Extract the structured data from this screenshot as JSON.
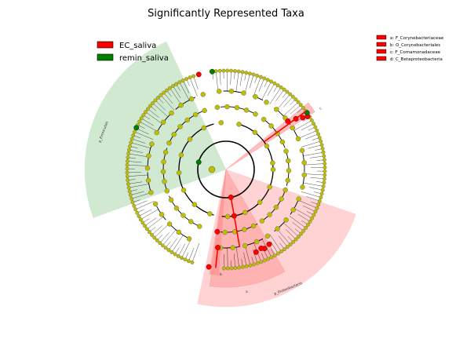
{
  "title": "Significantly Represented Taxa",
  "groups": [
    {
      "name": "EC_saliva",
      "color": "#ff0000"
    },
    {
      "name": "remin_saliva",
      "color": "#008000"
    }
  ],
  "taxa_legend": [
    "a: F_Corynebacteriaceae",
    "b: O_Corynebacteriales",
    "c: F_Comamonadaceae",
    "d: C_Betaproteobacteria"
  ],
  "clade_labels": {
    "firmicutes": "p_Firmicutes",
    "proteobacteria": "p_Proteobacteria",
    "a": "a",
    "b": "b",
    "c": "c",
    "d": "d"
  },
  "colors": {
    "node_default": "#bfbf00",
    "enriched_ec": "#ff0000",
    "enriched_remin": "#008000",
    "shade_green": "#cfe8cf",
    "shade_red": "#ffc8c8",
    "shade_red_dark": "#ff8a8a"
  }
}
